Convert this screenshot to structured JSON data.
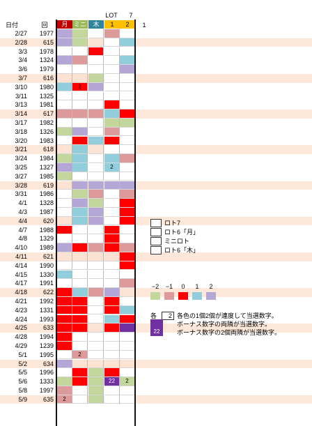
{
  "header": {
    "date_label": "日付",
    "round_label": "回",
    "lot_label": "LOT",
    "seven_label": "7",
    "col_labels": [
      "月",
      "ミニ",
      "木",
      "1",
      "2"
    ],
    "extra_label": "1"
  },
  "colors": {
    "band": "#fde7d9",
    "white": "#ffffff",
    "lavender": "#b4a7d6",
    "pink": "#dd9a9a",
    "red": "#ff0000",
    "green": "#c3d69b",
    "blue": "#92cddc",
    "peach": "#fbe2d3",
    "purple": "#7030a0",
    "hdr_mon": "#c00000",
    "hdr_mini": "#9bbb59",
    "hdr_thu": "#31849b",
    "hdr_1": "#ffc000",
    "hdr_2": "#ffc000"
  },
  "rows": [
    {
      "date": "2/27",
      "round": "1977",
      "band": false,
      "cells": [
        "lavender",
        "green",
        "white",
        "pink",
        "white"
      ],
      "nums": [
        "",
        "",
        "",
        "",
        ""
      ]
    },
    {
      "date": "2/28",
      "round": "615",
      "band": true,
      "cells": [
        "lavender",
        "green",
        "peach",
        "white",
        "blue"
      ],
      "nums": [
        "",
        "",
        "",
        "",
        ""
      ]
    },
    {
      "date": "3/3",
      "round": "1978",
      "band": false,
      "cells": [
        "white",
        "white",
        "red",
        "white",
        "white"
      ],
      "nums": [
        "",
        "",
        "",
        "",
        ""
      ]
    },
    {
      "date": "3/4",
      "round": "1324",
      "band": false,
      "cells": [
        "lavender",
        "pink",
        "white",
        "white",
        "blue"
      ],
      "nums": [
        "",
        "",
        "",
        "",
        ""
      ]
    },
    {
      "date": "3/6",
      "round": "1979",
      "band": false,
      "cells": [
        "white",
        "white",
        "white",
        "white",
        "lavender"
      ],
      "nums": [
        "",
        "",
        "",
        "",
        ""
      ]
    },
    {
      "date": "3/7",
      "round": "616",
      "band": true,
      "cells": [
        "peach",
        "peach",
        "green",
        "white",
        "white"
      ],
      "nums": [
        "",
        "",
        "",
        "",
        ""
      ]
    },
    {
      "date": "3/10",
      "round": "1980",
      "band": false,
      "cells": [
        "blue",
        "red",
        "lavender",
        "white",
        "white"
      ],
      "nums": [
        "",
        "2",
        "",
        "",
        ""
      ]
    },
    {
      "date": "3/11",
      "round": "1325",
      "band": false,
      "cells": [
        "white",
        "white",
        "white",
        "white",
        "white"
      ],
      "nums": [
        "",
        "",
        "",
        "",
        ""
      ]
    },
    {
      "date": "3/13",
      "round": "1981",
      "band": false,
      "cells": [
        "white",
        "white",
        "white",
        "red",
        "white"
      ],
      "nums": [
        "",
        "",
        "",
        "",
        ""
      ]
    },
    {
      "date": "3/14",
      "round": "617",
      "band": true,
      "cells": [
        "pink",
        "pink",
        "pink",
        "blue",
        "red"
      ],
      "nums": [
        "",
        "",
        "",
        "",
        ""
      ]
    },
    {
      "date": "3/17",
      "round": "1982",
      "band": false,
      "cells": [
        "white",
        "white",
        "white",
        "green",
        "green"
      ],
      "nums": [
        "",
        "",
        "",
        "",
        ""
      ]
    },
    {
      "date": "3/18",
      "round": "1326",
      "band": false,
      "cells": [
        "green",
        "lavender",
        "white",
        "pink",
        "white"
      ],
      "nums": [
        "",
        "",
        "",
        "",
        ""
      ]
    },
    {
      "date": "3/20",
      "round": "1983",
      "band": false,
      "cells": [
        "white",
        "red",
        "blue",
        "red",
        "white"
      ],
      "nums": [
        "",
        "",
        "",
        "",
        ""
      ]
    },
    {
      "date": "3/21",
      "round": "618",
      "band": true,
      "cells": [
        "peach",
        "blue",
        "peach",
        "white",
        "white"
      ],
      "nums": [
        "",
        "",
        "",
        "",
        ""
      ]
    },
    {
      "date": "3/24",
      "round": "1984",
      "band": false,
      "cells": [
        "green",
        "blue",
        "white",
        "blue",
        "pink"
      ],
      "nums": [
        "",
        "",
        "",
        "",
        ""
      ]
    },
    {
      "date": "3/25",
      "round": "1327",
      "band": false,
      "cells": [
        "lavender",
        "blue",
        "white",
        "blue",
        "white"
      ],
      "nums": [
        "",
        "",
        "",
        "2",
        ""
      ]
    },
    {
      "date": "3/27",
      "round": "1985",
      "band": false,
      "cells": [
        "green",
        "white",
        "white",
        "white",
        "white"
      ],
      "nums": [
        "",
        "",
        "",
        "",
        ""
      ]
    },
    {
      "date": "3/28",
      "round": "619",
      "band": true,
      "cells": [
        "peach",
        "lavender",
        "lavender",
        "lavender",
        "lavender"
      ],
      "nums": [
        "",
        "",
        "",
        "",
        ""
      ]
    },
    {
      "date": "3/31",
      "round": "1986",
      "band": false,
      "cells": [
        "white",
        "green",
        "pink",
        "white",
        "pink"
      ],
      "nums": [
        "",
        "",
        "",
        "",
        ""
      ]
    },
    {
      "date": "4/1",
      "round": "1328",
      "band": false,
      "cells": [
        "white",
        "lavender",
        "green",
        "white",
        "red"
      ],
      "nums": [
        "",
        "",
        "",
        "",
        ""
      ]
    },
    {
      "date": "4/3",
      "round": "1987",
      "band": false,
      "cells": [
        "white",
        "blue",
        "lavender",
        "white",
        "red"
      ],
      "nums": [
        "",
        "",
        "",
        "",
        ""
      ]
    },
    {
      "date": "4/4",
      "round": "620",
      "band": true,
      "cells": [
        "peach",
        "blue",
        "lavender",
        "white",
        "red"
      ],
      "nums": [
        "",
        "",
        "",
        "",
        ""
      ]
    },
    {
      "date": "4/7",
      "round": "1988",
      "band": false,
      "cells": [
        "red",
        "white",
        "white",
        "red",
        "white"
      ],
      "nums": [
        "",
        "",
        "",
        "",
        ""
      ]
    },
    {
      "date": "4/8",
      "round": "1329",
      "band": false,
      "cells": [
        "white",
        "white",
        "white",
        "red",
        "white"
      ],
      "nums": [
        "",
        "",
        "",
        "",
        ""
      ]
    },
    {
      "date": "4/10",
      "round": "1989",
      "band": false,
      "cells": [
        "lavender",
        "red",
        "pink",
        "red",
        "pink"
      ],
      "nums": [
        "",
        "",
        "",
        "",
        ""
      ]
    },
    {
      "date": "4/11",
      "round": "621",
      "band": true,
      "cells": [
        "peach",
        "peach",
        "peach",
        "peach",
        "red"
      ],
      "nums": [
        "",
        "",
        "",
        "",
        ""
      ]
    },
    {
      "date": "4/14",
      "round": "1990",
      "band": false,
      "cells": [
        "white",
        "white",
        "white",
        "white",
        "red"
      ],
      "nums": [
        "",
        "",
        "",
        "",
        ""
      ]
    },
    {
      "date": "4/15",
      "round": "1330",
      "band": false,
      "cells": [
        "blue",
        "white",
        "white",
        "white",
        "white"
      ],
      "nums": [
        "",
        "",
        "",
        "",
        ""
      ]
    },
    {
      "date": "4/17",
      "round": "1991",
      "band": false,
      "cells": [
        "white",
        "white",
        "white",
        "white",
        "pink"
      ],
      "nums": [
        "",
        "",
        "",
        "",
        ""
      ]
    },
    {
      "date": "4/18",
      "round": "622",
      "band": true,
      "cells": [
        "red",
        "blue",
        "pink",
        "lavender",
        "peach"
      ],
      "nums": [
        "",
        "",
        "",
        "",
        ""
      ]
    },
    {
      "date": "4/21",
      "round": "1992",
      "band": false,
      "cells": [
        "red",
        "red",
        "white",
        "red",
        "white"
      ],
      "nums": [
        "",
        "",
        "",
        "",
        ""
      ]
    },
    {
      "date": "4/23",
      "round": "1331",
      "band": false,
      "cells": [
        "red",
        "red",
        "white",
        "red",
        "blue"
      ],
      "nums": [
        "",
        "",
        "",
        "",
        ""
      ]
    },
    {
      "date": "4/24",
      "round": "1993",
      "band": false,
      "cells": [
        "red",
        "red",
        "white",
        "blue",
        "red"
      ],
      "nums": [
        "",
        "",
        "",
        "",
        ""
      ]
    },
    {
      "date": "4/25",
      "round": "633",
      "band": true,
      "cells": [
        "red",
        "red",
        "peach",
        "red",
        "purple"
      ],
      "nums": [
        "",
        "",
        "",
        "",
        ""
      ]
    },
    {
      "date": "4/28",
      "round": "1994",
      "band": false,
      "cells": [
        "red",
        "white",
        "white",
        "white",
        "white"
      ],
      "nums": [
        "",
        "",
        "",
        "",
        ""
      ]
    },
    {
      "date": "4/29",
      "round": "1239",
      "band": false,
      "cells": [
        "red",
        "white",
        "white",
        "white",
        "white"
      ],
      "nums": [
        "",
        "",
        "",
        "",
        ""
      ]
    },
    {
      "date": "5/1",
      "round": "1995",
      "band": false,
      "cells": [
        "white",
        "pink",
        "white",
        "white",
        "white"
      ],
      "nums": [
        "",
        "2",
        "",
        "",
        ""
      ]
    },
    {
      "date": "5/2",
      "round": "634",
      "band": true,
      "cells": [
        "lavender",
        "peach",
        "peach",
        "peach",
        "peach"
      ],
      "nums": [
        "",
        "",
        "",
        "",
        ""
      ]
    },
    {
      "date": "5/5",
      "round": "1996",
      "band": false,
      "cells": [
        "white",
        "red",
        "green",
        "red",
        "white"
      ],
      "nums": [
        "",
        "",
        "",
        "",
        ""
      ]
    },
    {
      "date": "5/6",
      "round": "1333",
      "band": false,
      "cells": [
        "green",
        "red",
        "green",
        "purple",
        "green"
      ],
      "nums": [
        "",
        "",
        "",
        "22",
        "2"
      ]
    },
    {
      "date": "5/8",
      "round": "1997",
      "band": false,
      "cells": [
        "pink",
        "white",
        "green",
        "white",
        "white"
      ],
      "nums": [
        "",
        "",
        "",
        "",
        ""
      ]
    },
    {
      "date": "5/9",
      "round": "635",
      "band": true,
      "cells": [
        "pink",
        "white",
        "green",
        "white",
        "white"
      ],
      "nums": [
        "2",
        "",
        "",
        "",
        ""
      ]
    }
  ],
  "legend": [
    {
      "label": "ロト7",
      "color": "white"
    },
    {
      "label": "ロト6「月」",
      "color": "white"
    },
    {
      "label": "ミニロト",
      "color": "white"
    },
    {
      "label": "ロト6「木」",
      "color": "white"
    }
  ],
  "scale": {
    "labels": [
      "−2",
      "−1",
      "0",
      "1",
      "2"
    ],
    "colors": [
      "green",
      "pink",
      "red",
      "blue",
      "lavender"
    ]
  },
  "notes": {
    "each_label": "各",
    "box_value": "2",
    "box2_value": "22",
    "note1": "各色の1個2個が連度して当選数字。",
    "note2": "ボーナス数字の両隣が当選数字。",
    "note3": "ボーナス数字の2個両隣が当選数字。"
  }
}
